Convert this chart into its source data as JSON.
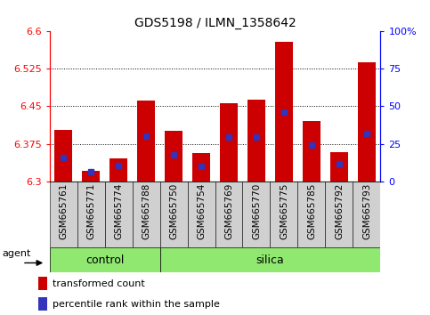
{
  "title": "GDS5198 / ILMN_1358642",
  "samples": [
    "GSM665761",
    "GSM665771",
    "GSM665774",
    "GSM665788",
    "GSM665750",
    "GSM665754",
    "GSM665769",
    "GSM665770",
    "GSM665775",
    "GSM665785",
    "GSM665792",
    "GSM665793"
  ],
  "n_control": 4,
  "n_silica": 8,
  "ymin": 6.3,
  "ymax": 6.6,
  "red_bar_tops": [
    6.402,
    6.32,
    6.345,
    6.462,
    6.4,
    6.357,
    6.457,
    6.463,
    6.58,
    6.42,
    6.358,
    6.538
  ],
  "blue_marker_vals": [
    6.347,
    6.318,
    6.332,
    6.39,
    6.352,
    6.33,
    6.388,
    6.388,
    6.438,
    6.372,
    6.335,
    6.395
  ],
  "right_yticks": [
    0,
    25,
    50,
    75,
    100
  ],
  "right_yticklabels": [
    "0",
    "25",
    "50",
    "75",
    "100%"
  ],
  "left_yticks": [
    6.3,
    6.375,
    6.45,
    6.525,
    6.6
  ],
  "left_yticklabels": [
    "6.3",
    "6.375",
    "6.45",
    "6.525",
    "6.6"
  ],
  "dotted_lines": [
    6.375,
    6.45,
    6.525
  ],
  "bar_color": "#cc0000",
  "blue_color": "#3333bb",
  "tick_bg_color": "#d0d0d0",
  "control_color": "#90e870",
  "silica_color": "#90e870",
  "group_border_color": "#000000",
  "agent_label": "agent",
  "control_label": "control",
  "silica_label": "silica",
  "legend_red_label": "transformed count",
  "legend_blue_label": "percentile rank within the sample",
  "bar_width": 0.65,
  "blue_marker_size": 5,
  "title_fontsize": 10,
  "axis_fontsize": 8,
  "tick_label_fontsize": 7.5,
  "legend_fontsize": 8
}
